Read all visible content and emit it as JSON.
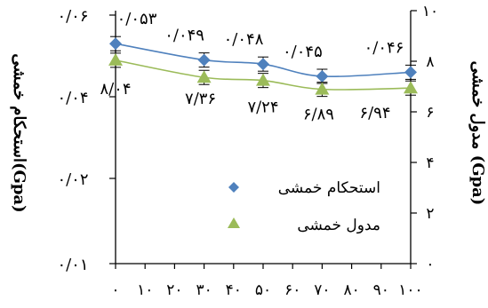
{
  "chart_data": {
    "type": "line",
    "xlabel": "",
    "left_ylabel": "استحکام خمشی(Gpa)",
    "right_ylabel": "مدول خمشی (Gpa)",
    "x_ticks": [
      0,
      10,
      20,
      30,
      40,
      50,
      60,
      70,
      80,
      90,
      100
    ],
    "x_tick_labels": [
      "۰",
      "۱۰",
      "۲۰",
      "۳۰",
      "۴۰",
      "۵۰",
      "۶۰",
      "۷۰",
      "۸۰",
      "۹۰",
      "۱۰۰"
    ],
    "xlim": [
      0,
      100
    ],
    "left_ticks": [
      {
        "value": 0.01,
        "label": "۰/۰۱"
      },
      {
        "value": 0.02,
        "label": "۰/۰۲"
      },
      {
        "value": 0.04,
        "label": "۰/۰۴"
      },
      {
        "value": 0.06,
        "label": "۰/۰۶"
      }
    ],
    "right_ticks": [
      {
        "value": 0,
        "label": "۰"
      },
      {
        "value": 2,
        "label": "۲"
      },
      {
        "value": 4,
        "label": "۴"
      },
      {
        "value": 6,
        "label": "۶"
      },
      {
        "value": 8,
        "label": "۸"
      },
      {
        "value": 10,
        "label": "۱۰"
      }
    ],
    "right_ylim": [
      0,
      10
    ],
    "series": [
      {
        "name": "استحکام خمشی",
        "axis": "left",
        "color": "#4f81bd",
        "marker": "diamond",
        "x": [
          0,
          30,
          50,
          70,
          100
        ],
        "y": [
          0.053,
          0.049,
          0.048,
          0.045,
          0.046
        ],
        "labels": [
          "۰/۰۵۳",
          "۰/۰۴۹",
          "۰/۰۴۸",
          "۰/۰۴۵",
          "۰/۰۴۶"
        ]
      },
      {
        "name": "مدول خمشی",
        "axis": "right",
        "color": "#9bbb59",
        "marker": "triangle",
        "x": [
          0,
          30,
          50,
          70,
          100
        ],
        "y": [
          8.04,
          7.36,
          7.24,
          6.89,
          6.94
        ],
        "labels": [
          "۸/۰۴",
          "۷/۳۶",
          "۷/۲۴",
          "۶/۸۹",
          "۶/۹۴"
        ]
      }
    ],
    "legend_position": "bottom-right inside",
    "grid": false,
    "error_bars": true,
    "trendline": "smooth"
  }
}
